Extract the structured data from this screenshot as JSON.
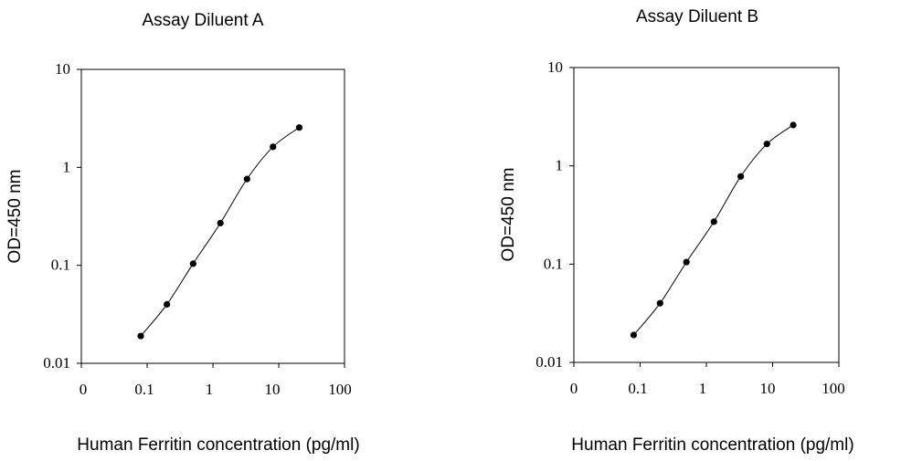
{
  "chart_data": [
    {
      "type": "line",
      "title": "Assay Diluent A",
      "xlabel": "Human Ferritin concentration (pg/ml)",
      "ylabel": "OD=450 nm",
      "x_tick_labels": [
        "0",
        "0.1",
        "1",
        "10",
        "100"
      ],
      "y_tick_labels": [
        "0.01",
        "0.1",
        "1",
        "10"
      ],
      "xscale": "log",
      "yscale": "log",
      "ylim": [
        0.01,
        10
      ],
      "grid": false,
      "x": [
        0.08,
        0.2,
        0.5,
        1.3,
        3.3,
        8.2,
        20.5
      ],
      "y": [
        0.019,
        0.04,
        0.104,
        0.27,
        0.76,
        1.62,
        2.55
      ]
    },
    {
      "type": "line",
      "title": "Assay Diluent B",
      "xlabel": "Human Ferritin concentration (pg/ml)",
      "ylabel": "OD=450 nm",
      "x_tick_labels": [
        "0",
        "0.1",
        "1",
        "10",
        "100"
      ],
      "y_tick_labels": [
        "0.01",
        "0.1",
        "1",
        "10"
      ],
      "xscale": "log",
      "yscale": "log",
      "ylim": [
        0.01,
        10
      ],
      "grid": false,
      "x": [
        0.08,
        0.2,
        0.5,
        1.3,
        3.3,
        8.2,
        20.5
      ],
      "y": [
        0.019,
        0.04,
        0.105,
        0.27,
        0.78,
        1.67,
        2.6
      ]
    }
  ]
}
